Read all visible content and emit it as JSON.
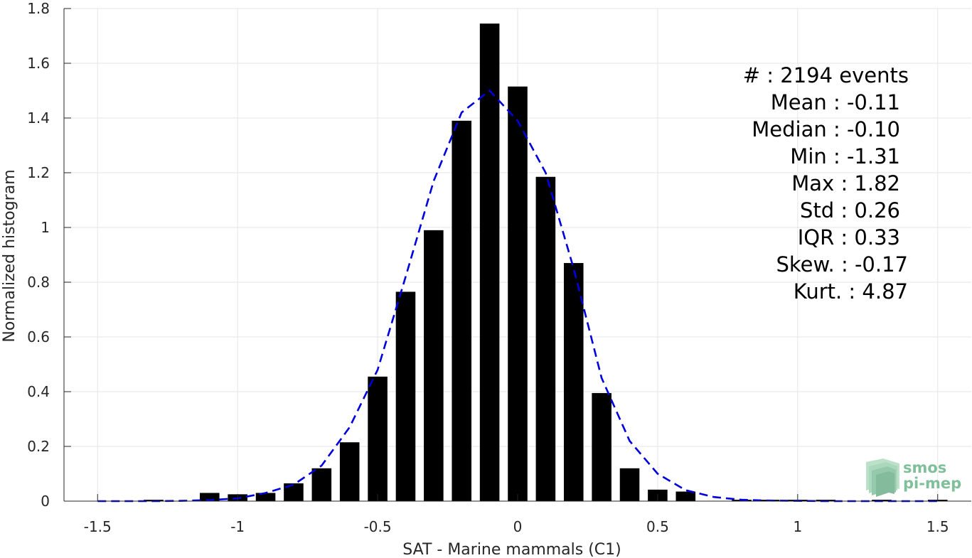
{
  "chart_data": {
    "type": "bar",
    "xlabel": "SAT - Marine mammals (C1)",
    "ylabel": "Normalized histogram",
    "xlim": [
      -1.62,
      1.62
    ],
    "ylim": [
      0,
      1.8
    ],
    "grid": true,
    "x_ticks": [
      -1.5,
      -1,
      -0.5,
      0,
      0.5,
      1,
      1.5
    ],
    "x_tick_labels": [
      "-1.5",
      "-1",
      "-0.5",
      "0",
      "0.5",
      "1",
      "1.5"
    ],
    "y_ticks": [
      0,
      0.2,
      0.4,
      0.6,
      0.8,
      1,
      1.2,
      1.4,
      1.6,
      1.8
    ],
    "y_tick_labels": [
      "0",
      "0.2",
      "0.4",
      "0.6",
      "0.8",
      "1",
      "1.2",
      "1.4",
      "1.6",
      "1.8"
    ],
    "bar_width": 0.07,
    "bars": {
      "x": [
        -1.3,
        -1.1,
        -1.0,
        -0.9,
        -0.8,
        -0.7,
        -0.6,
        -0.5,
        -0.4,
        -0.3,
        -0.2,
        -0.1,
        0.0,
        0.1,
        0.2,
        0.3,
        0.4,
        0.5,
        0.6,
        0.8,
        0.9,
        1.0,
        1.1,
        1.3,
        1.5
      ],
      "values": [
        0.005,
        0.03,
        0.025,
        0.03,
        0.065,
        0.12,
        0.215,
        0.455,
        0.765,
        0.99,
        1.39,
        1.745,
        1.515,
        1.185,
        0.87,
        0.395,
        0.12,
        0.042,
        0.035,
        0.005,
        0.005,
        0.005,
        0.005,
        0.005,
        0.005
      ],
      "color": "#000000"
    },
    "fit_curve": {
      "style": "dashed",
      "color": "#0000dd",
      "x": [
        -1.5,
        -1.4,
        -1.3,
        -1.2,
        -1.1,
        -1.0,
        -0.9,
        -0.8,
        -0.7,
        -0.6,
        -0.5,
        -0.4,
        -0.3,
        -0.2,
        -0.1,
        0.0,
        0.1,
        0.2,
        0.3,
        0.4,
        0.5,
        0.6,
        0.7,
        0.8,
        0.9,
        1.0,
        1.1,
        1.2,
        1.3,
        1.4,
        1.5
      ],
      "y": [
        0.0,
        0.0,
        0.0,
        0.001,
        0.004,
        0.01,
        0.03,
        0.06,
        0.13,
        0.27,
        0.48,
        0.82,
        1.17,
        1.42,
        1.5,
        1.39,
        1.2,
        0.85,
        0.45,
        0.22,
        0.1,
        0.04,
        0.015,
        0.005,
        0.002,
        0.001,
        0.0,
        0.0,
        0.0,
        0.0,
        0.0
      ]
    },
    "stats": {
      "count": "#  : 2194 events",
      "mean": "Mean : -0.11",
      "median": "Median : -0.10",
      "min": "Min : -1.31",
      "max": "Max : 1.82",
      "std": "Std : 0.26",
      "iqr": "IQR : 0.33",
      "skew": "Skew. : -0.17",
      "kurt": "Kurt. : 4.87"
    }
  },
  "logo": {
    "line1": "smos",
    "line2": "pi-mep"
  },
  "colors": {
    "grid": "#e6e6e6",
    "axis": "#262626",
    "logo": "#7fbf9a"
  }
}
